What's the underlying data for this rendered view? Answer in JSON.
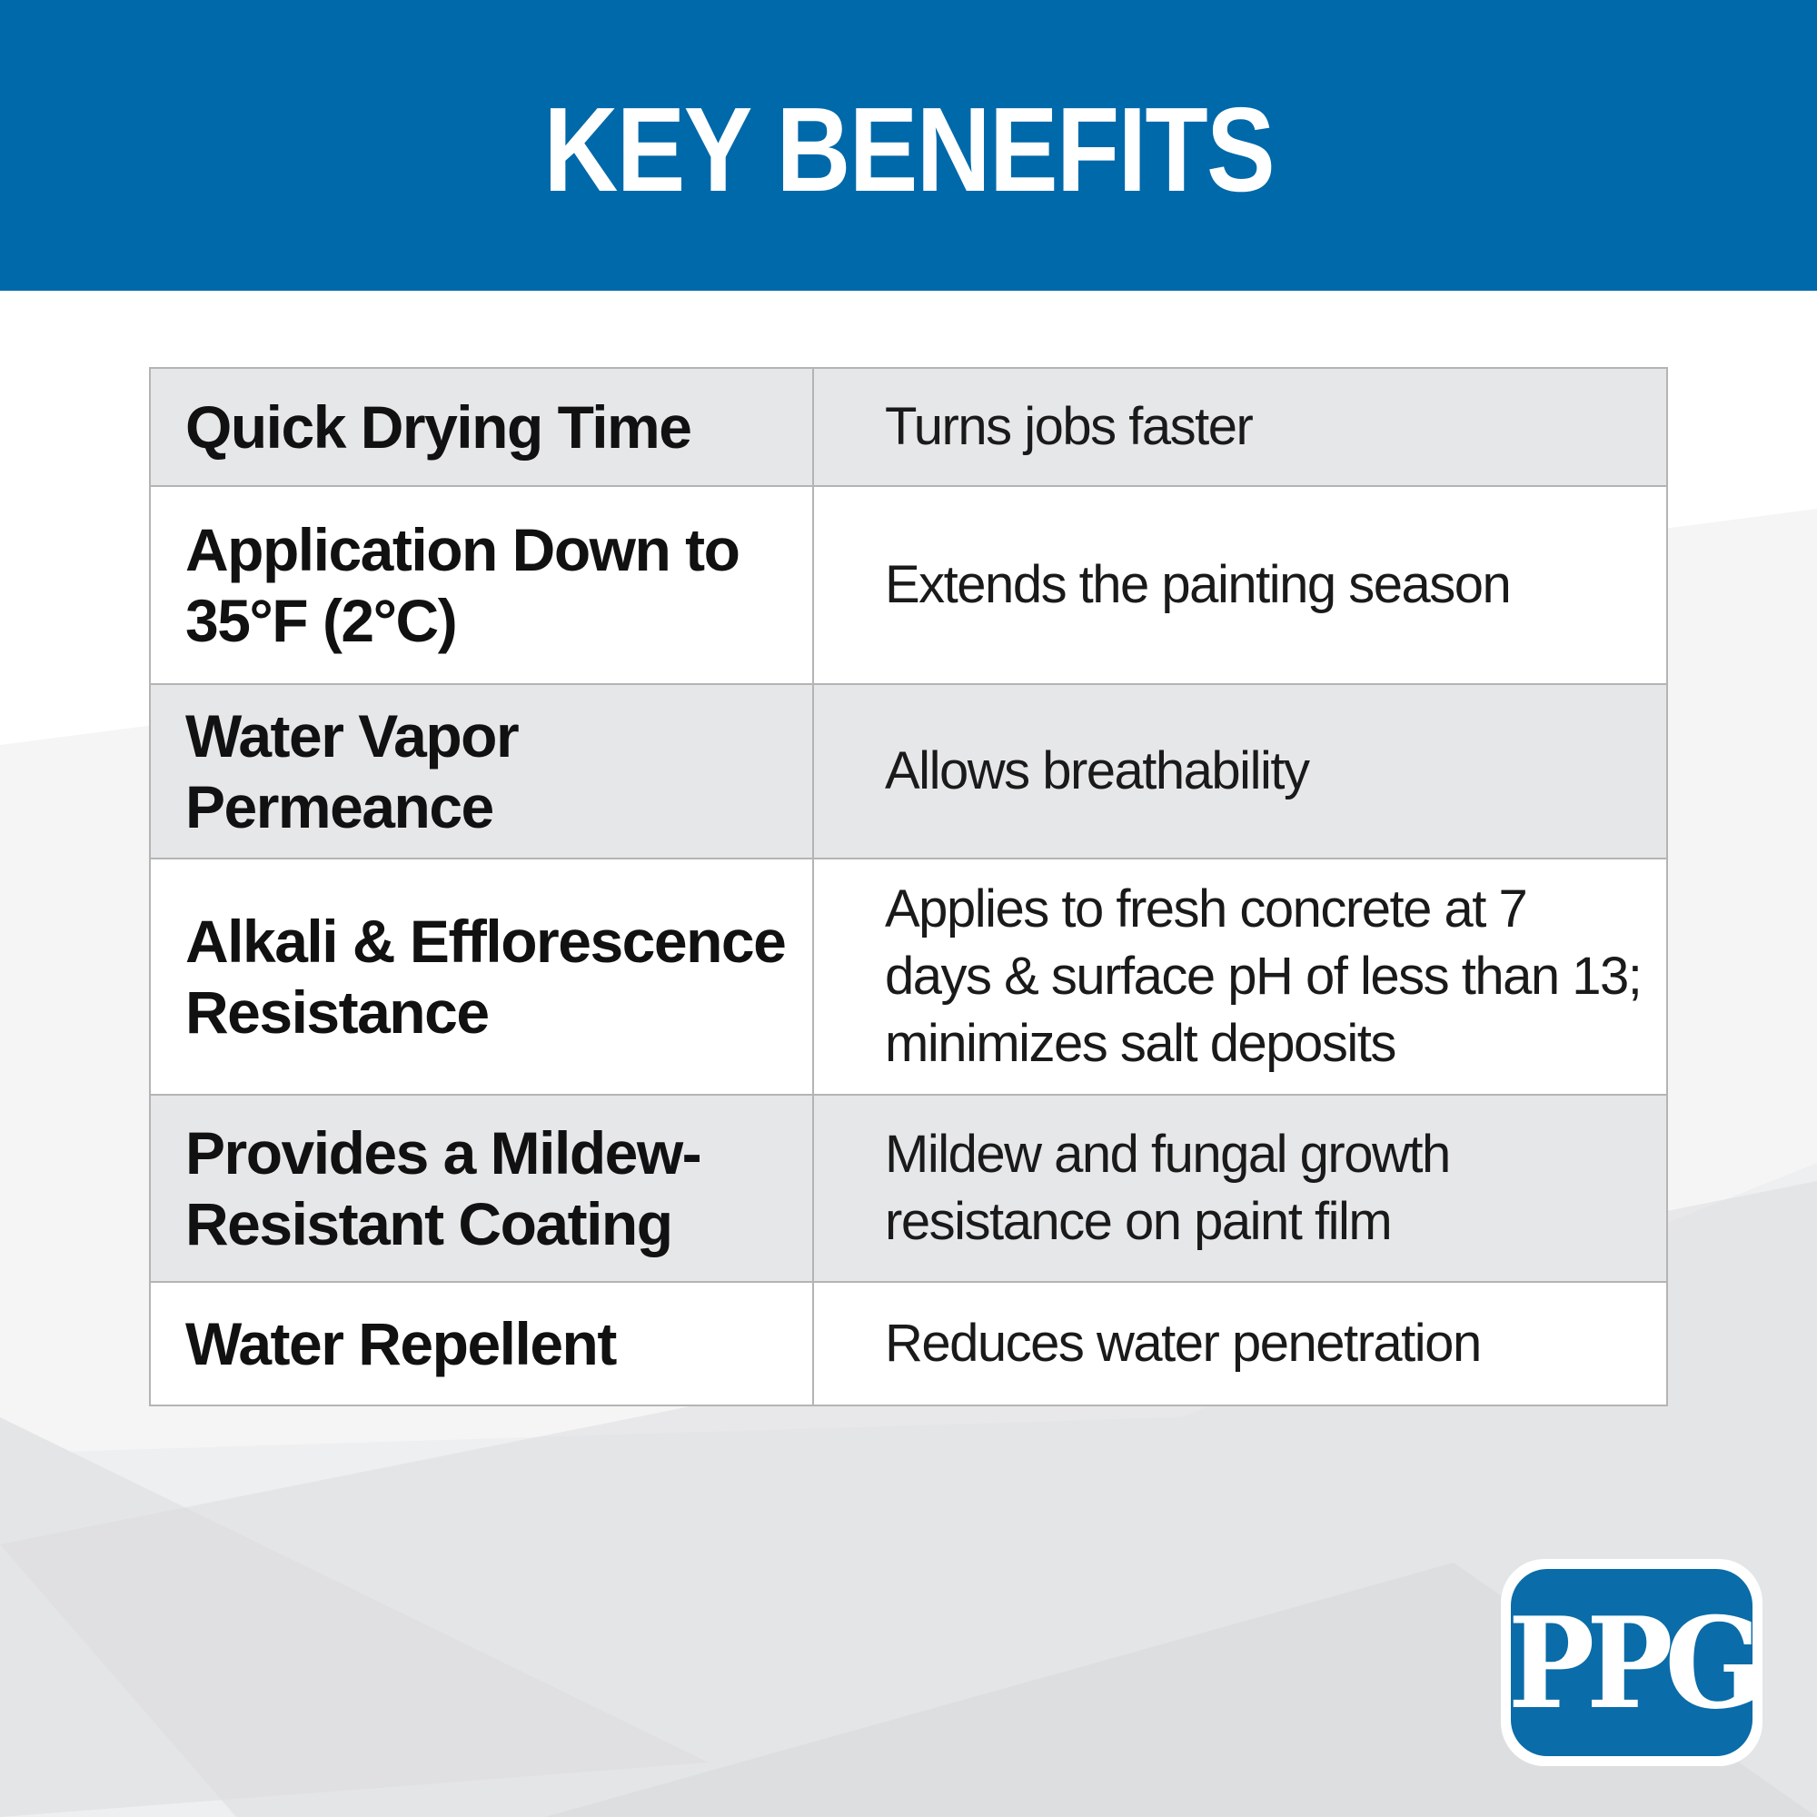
{
  "header": {
    "title": "KEY BENEFITS",
    "background_color": "#0069aa"
  },
  "benefits": [
    {
      "feature": "Quick Drying Time",
      "description": "Turns jobs faster"
    },
    {
      "feature": "Application Down to\n35°F (2°C)",
      "description": "Extends the painting season"
    },
    {
      "feature": "Water Vapor\nPermeance",
      "description": "Allows breathability"
    },
    {
      "feature": "Alkali & Efflorescence\nResistance",
      "description": "Applies to fresh concrete at 7\ndays & surface pH of less than 13;\nminimizes salt deposits"
    },
    {
      "feature": "Provides a Mildew-\nResistant Coating",
      "description": "Mildew and fungal growth\nresistance on paint film"
    },
    {
      "feature": "Water Repellent",
      "description": "Reduces water penetration"
    }
  ],
  "logo": {
    "text": "PPG",
    "color": "#0a6ca8"
  },
  "colors": {
    "row_shade": "#e6e7e9",
    "row_plain": "#ffffff",
    "border": "#b4b4b4"
  }
}
